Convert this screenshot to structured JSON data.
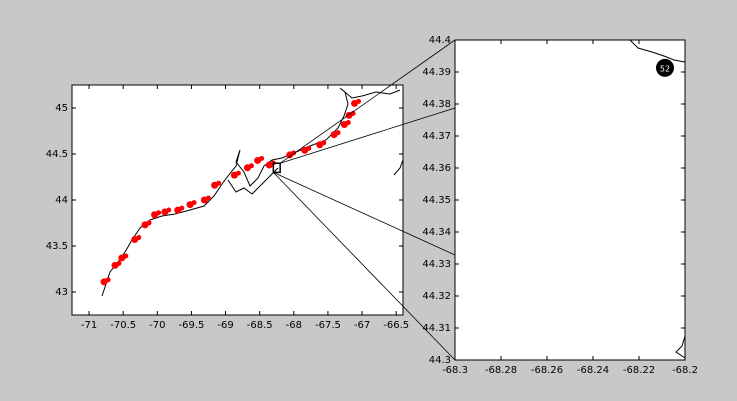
{
  "chart_data": [
    {
      "type": "map",
      "xlim": [
        -71.25,
        -66.4
      ],
      "ylim": [
        42.75,
        45.25
      ],
      "xticks": [
        -71,
        -70.5,
        -70,
        -69.5,
        -69,
        -68.5,
        -68,
        -67.5,
        -67,
        -66.5
      ],
      "yticks": [
        43,
        43.5,
        44,
        44.5,
        45
      ],
      "series": [
        {
          "color": "#ff0000",
          "x": [
            -70.78,
            -70.62,
            -70.52,
            -70.33,
            -70.18,
            -70.04,
            -69.89,
            -69.7,
            -69.52,
            -69.31,
            -69.16,
            -68.87,
            -68.68,
            -68.53,
            -68.36,
            -68.06,
            -67.84,
            -67.62,
            -67.41,
            -67.26,
            -67.19,
            -67.11
          ],
          "values": [
            43.11,
            43.29,
            43.37,
            43.57,
            43.73,
            43.84,
            43.87,
            43.89,
            43.95,
            44.0,
            44.16,
            44.27,
            44.35,
            44.43,
            44.38,
            44.49,
            44.54,
            44.6,
            44.71,
            44.82,
            44.92,
            45.05
          ]
        }
      ]
    },
    {
      "type": "map",
      "xlim": [
        -68.3,
        -68.2
      ],
      "ylim": [
        44.3,
        44.4
      ],
      "xticks": [
        -68.3,
        -68.28,
        -68.26,
        -68.24,
        -68.22,
        -68.2
      ],
      "yticks": [
        44.3,
        44.31,
        44.32,
        44.33,
        44.34,
        44.35,
        44.36,
        44.37,
        44.38,
        44.39,
        44.4
      ],
      "series": [
        {
          "color": "#000000",
          "x": [
            -68.2087
          ],
          "values": [
            44.3913
          ],
          "labels": [
            "52"
          ]
        }
      ]
    }
  ]
}
